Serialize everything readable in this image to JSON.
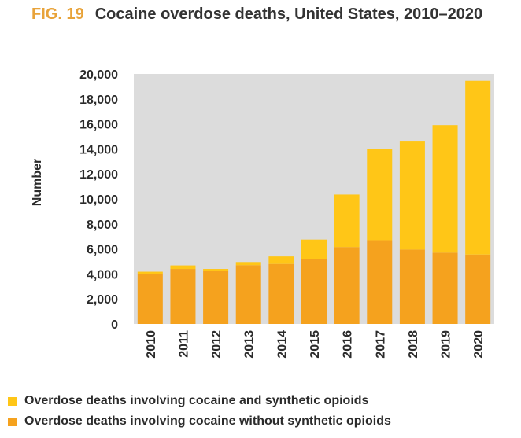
{
  "figure": {
    "label": "FIG. 19",
    "title": "Cocaine overdose deaths, United States, 2010–2020"
  },
  "colors": {
    "with_synthetic": "#ffc617",
    "without_synthetic": "#f5a21e",
    "plot_background": "#dcdcdc",
    "label_accent": "#e8a33a"
  },
  "chart_data": {
    "type": "bar",
    "stacked": true,
    "categories": [
      "2010",
      "2011",
      "2012",
      "2013",
      "2014",
      "2015",
      "2016",
      "2017",
      "2018",
      "2019",
      "2020"
    ],
    "series": [
      {
        "name": "Overdose deaths involving cocaine without synthetic opioids",
        "color": "#f5a21e",
        "values": [
          4000,
          4400,
          4250,
          4700,
          4800,
          5200,
          6150,
          6700,
          5950,
          5700,
          5550
        ]
      },
      {
        "name": "Overdose deaths involving cocaine and synthetic opioids",
        "color": "#ffc617",
        "values": [
          180,
          280,
          150,
          250,
          600,
          1550,
          4200,
          7300,
          8700,
          10200,
          13900
        ]
      }
    ],
    "title": "Cocaine overdose deaths, United States, 2010–2020",
    "ylabel": "Number",
    "xlabel": "",
    "ylim": [
      0,
      20000
    ],
    "yticks": [
      0,
      2000,
      4000,
      6000,
      8000,
      10000,
      12000,
      14000,
      16000,
      18000,
      20000
    ],
    "ytick_labels": [
      "0",
      "2,000",
      "4,000",
      "6,000",
      "8,000",
      "10,000",
      "12,000",
      "14,000",
      "16,000",
      "18,000",
      "20,000"
    ],
    "grid": false,
    "legend_position": "bottom"
  }
}
